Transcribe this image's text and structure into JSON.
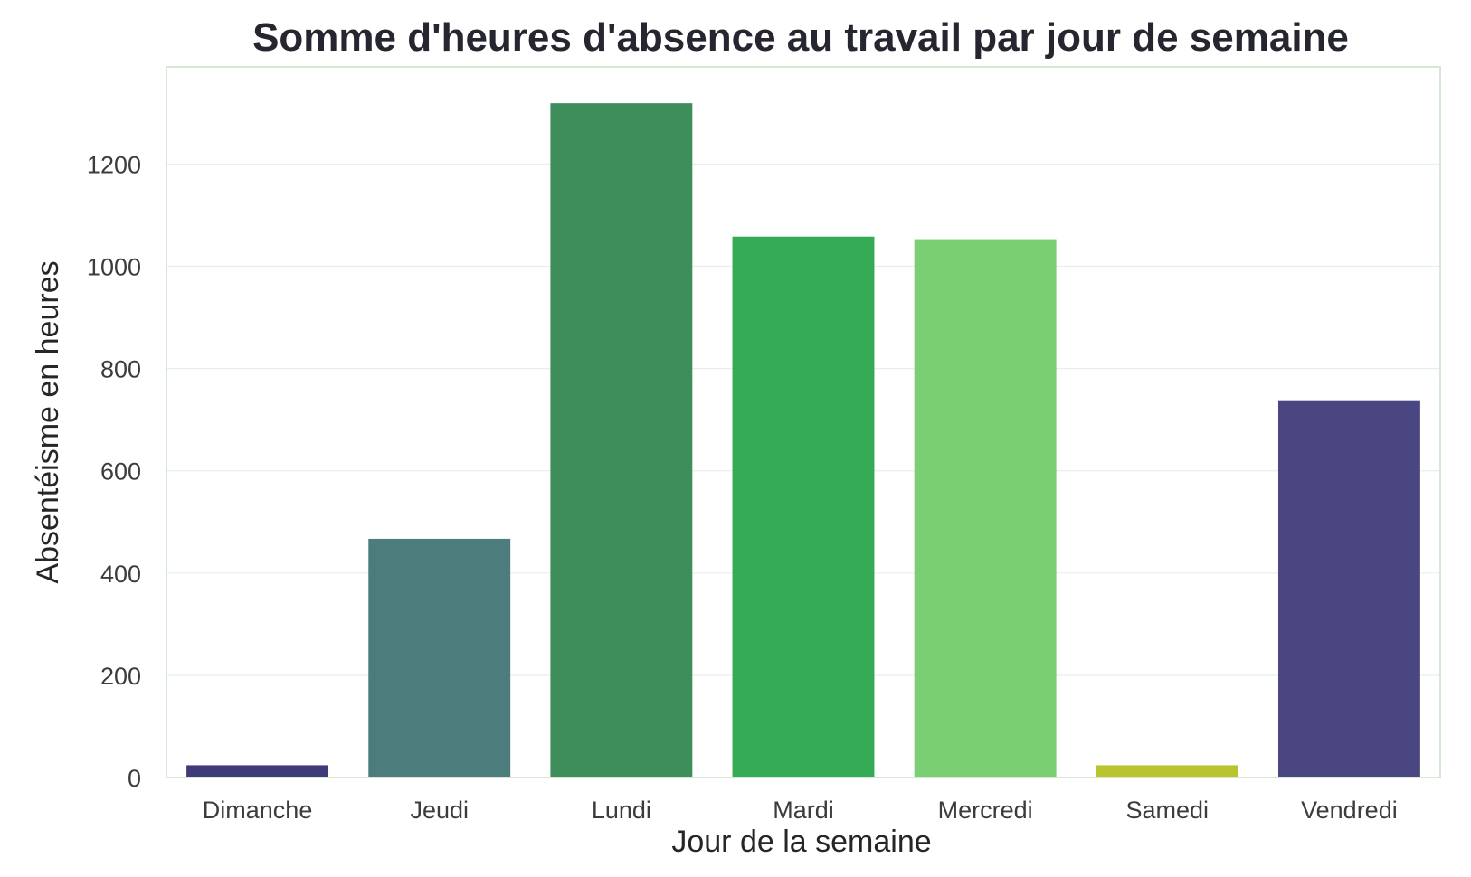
{
  "chart_data": {
    "type": "bar",
    "title": "Somme d'heures d'absence au travail par jour de semaine",
    "xlabel": "Jour de la semaine",
    "ylabel": "Absentéisme en heures",
    "categories": [
      "Dimanche",
      "Jeudi",
      "Lundi",
      "Mardi",
      "Mercredi",
      "Samedi",
      "Vendredi"
    ],
    "values": [
      24,
      467,
      1319,
      1058,
      1053,
      24,
      738
    ],
    "colors": [
      "#3f3a78",
      "#4d7c7c",
      "#3e8e5c",
      "#36ab55",
      "#79cf72",
      "#b8c32e",
      "#4a4682"
    ],
    "ylim": [
      0,
      1390
    ],
    "yticks": [
      0,
      200,
      400,
      600,
      800,
      1000,
      1200
    ],
    "grid": true,
    "legend": "none"
  }
}
